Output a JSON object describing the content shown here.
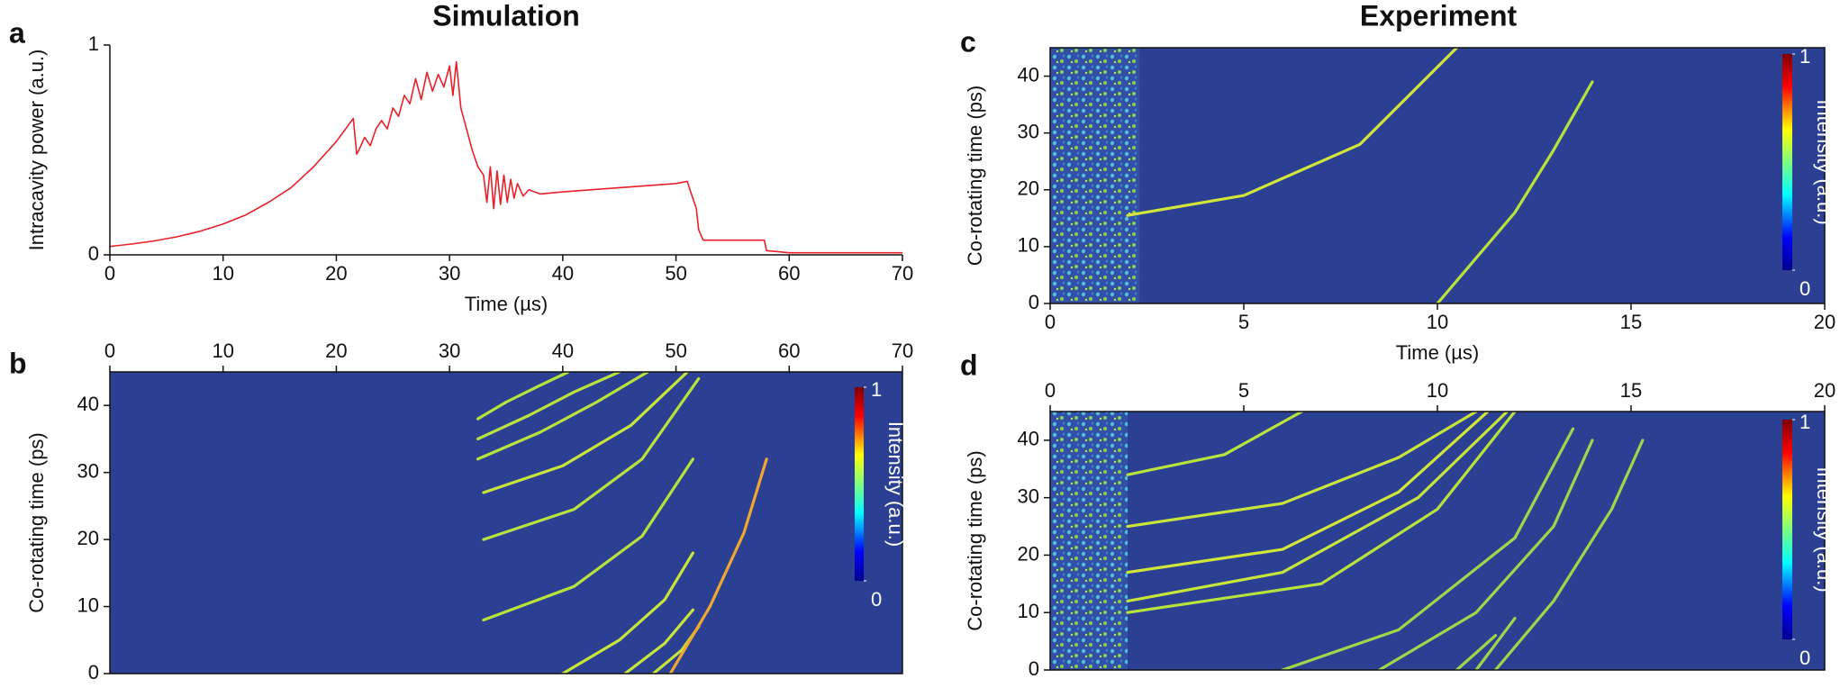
{
  "chart_data": [
    {
      "type": "line",
      "panel": "a",
      "title": "Simulation",
      "x_label": "Time (µs)",
      "y_label": "Intracavity power (a.u.)",
      "x": [
        0,
        2,
        4,
        6,
        8,
        10,
        12,
        14,
        16,
        18,
        20,
        21.5,
        21.8,
        22,
        22.5,
        23,
        23.5,
        24,
        24.5,
        25,
        25.5,
        26,
        26.5,
        27,
        27.5,
        28,
        28.5,
        29,
        29.5,
        30,
        30.3,
        30.6,
        31,
        31.5,
        32,
        32.5,
        33,
        33.3,
        33.6,
        33.9,
        34.2,
        34.5,
        34.8,
        35.1,
        35.4,
        35.7,
        36,
        36.5,
        37,
        38,
        40,
        45,
        50,
        51,
        51.3,
        51.8,
        52,
        52.4,
        57.8,
        58,
        60,
        70
      ],
      "series": [
        {
          "color": "#e8202a",
          "values": [
            0.04,
            0.052,
            0.067,
            0.087,
            0.113,
            0.147,
            0.19,
            0.25,
            0.32,
            0.42,
            0.54,
            0.65,
            0.48,
            0.5,
            0.56,
            0.52,
            0.6,
            0.64,
            0.6,
            0.7,
            0.66,
            0.76,
            0.72,
            0.84,
            0.74,
            0.87,
            0.78,
            0.86,
            0.8,
            0.9,
            0.76,
            0.92,
            0.7,
            0.6,
            0.5,
            0.42,
            0.38,
            0.25,
            0.42,
            0.22,
            0.4,
            0.24,
            0.38,
            0.25,
            0.36,
            0.27,
            0.34,
            0.28,
            0.31,
            0.29,
            0.3,
            0.32,
            0.34,
            0.35,
            0.3,
            0.22,
            0.12,
            0.07,
            0.07,
            0.02,
            0.01,
            0.01
          ]
        }
      ],
      "xlim": [
        0,
        70
      ],
      "ylim": [
        0,
        1
      ],
      "xticks": [
        0,
        10,
        20,
        30,
        40,
        50,
        60,
        70
      ],
      "yticks": [
        0,
        1
      ],
      "xaxis_position": "bottom",
      "frame": false
    },
    {
      "type": "heatmap",
      "panel": "b",
      "y_label": "Co-rotating time (ps)",
      "background": "#2b3f93",
      "xlim": [
        0,
        70
      ],
      "ylim": [
        0,
        45
      ],
      "xticks": [
        0,
        10,
        20,
        30,
        40,
        50,
        60,
        70
      ],
      "yticks": [
        0,
        10,
        20,
        30,
        40
      ],
      "xaxis_position": "top",
      "frame": true,
      "colorbar": {
        "label": "Intensity (a.u.)",
        "lim": [
          0,
          1
        ],
        "ticks": [
          0,
          1
        ]
      },
      "series": [
        {
          "color": "#b8e23c",
          "x": [
            32.5,
            35,
            38,
            40.5
          ],
          "values": [
            38,
            40.5,
            43,
            45
          ]
        },
        {
          "color": "#b8e23c",
          "x": [
            32.5,
            37,
            41,
            45
          ],
          "values": [
            35,
            38.5,
            42,
            45
          ]
        },
        {
          "color": "#b8e23c",
          "x": [
            32.5,
            38,
            43,
            47.5
          ],
          "values": [
            32,
            36,
            40.5,
            45
          ]
        },
        {
          "color": "#c9e43a",
          "x": [
            33,
            40,
            46,
            51
          ],
          "values": [
            27,
            31,
            37,
            45
          ]
        },
        {
          "color": "#b8e23c",
          "x": [
            33,
            41,
            47,
            52
          ],
          "values": [
            20,
            24.5,
            32,
            44
          ]
        },
        {
          "color": "#b8e23c",
          "x": [
            33,
            41,
            47,
            51.5
          ],
          "values": [
            8,
            13,
            20.5,
            32
          ]
        },
        {
          "color": "#c9e43a",
          "x": [
            40,
            45,
            49,
            51.5
          ],
          "values": [
            0,
            5,
            11,
            18
          ]
        },
        {
          "color": "#c9e43a",
          "x": [
            45.5,
            49,
            51.5
          ],
          "values": [
            0,
            4.5,
            9.5
          ]
        },
        {
          "color": "#c9e43a",
          "x": [
            48,
            50.5,
            52
          ],
          "values": [
            0,
            3.5,
            7
          ]
        },
        {
          "color": "#f0a830",
          "x": [
            49.5,
            53,
            56,
            58
          ],
          "values": [
            0,
            10,
            21,
            32
          ]
        }
      ]
    },
    {
      "type": "heatmap",
      "panel": "c",
      "title": "Experiment",
      "x_label": "Time (µs)",
      "y_label": "Co-rotating time (ps)",
      "background": "#2b3f93",
      "xlim": [
        0,
        20
      ],
      "ylim": [
        0,
        45
      ],
      "xticks": [
        0,
        5,
        10,
        15,
        20
      ],
      "yticks": [
        0,
        10,
        20,
        30,
        40
      ],
      "xaxis_position": "bottom",
      "frame": true,
      "colorbar": {
        "label": "Intensity (a.u.)",
        "lim": [
          0,
          1
        ],
        "ticks": [
          0,
          1
        ]
      },
      "series": [
        {
          "color": "#d2e63a",
          "x": [
            2,
            5,
            8,
            10.5
          ],
          "values": [
            15.5,
            19,
            28,
            45
          ]
        },
        {
          "color": "#b8e23c",
          "x": [
            10,
            12,
            13,
            14
          ],
          "values": [
            0,
            16,
            27,
            39
          ]
        }
      ]
    },
    {
      "type": "heatmap",
      "panel": "d",
      "y_label": "Co-rotating time (ps)",
      "background": "#2b3f93",
      "xlim": [
        0,
        20
      ],
      "ylim": [
        0,
        45
      ],
      "xticks": [
        0,
        5,
        10,
        15,
        20
      ],
      "yticks": [
        0,
        10,
        20,
        30,
        40
      ],
      "xaxis_position": "top",
      "frame": true,
      "colorbar": {
        "label": "Intensity (a.u.)",
        "lim": [
          0,
          1
        ],
        "ticks": [
          0,
          1
        ]
      },
      "series": [
        {
          "color": "#b8e23c",
          "x": [
            2,
            4.5,
            6.5
          ],
          "values": [
            34,
            37.5,
            45
          ]
        },
        {
          "color": "#c9e43a",
          "x": [
            2,
            6,
            9,
            11
          ],
          "values": [
            25,
            29,
            37,
            45
          ]
        },
        {
          "color": "#d2e63a",
          "x": [
            2,
            6,
            9,
            11.3
          ],
          "values": [
            17,
            21,
            31,
            45
          ]
        },
        {
          "color": "#c9e43a",
          "x": [
            2,
            6,
            9.5,
            11.8
          ],
          "values": [
            12,
            17,
            30,
            45
          ]
        },
        {
          "color": "#b8e23c",
          "x": [
            2,
            7,
            10,
            12
          ],
          "values": [
            10,
            15,
            28,
            45
          ]
        },
        {
          "color": "#9ed84a",
          "x": [
            6,
            9,
            12,
            13.5
          ],
          "values": [
            0,
            7,
            23,
            42
          ]
        },
        {
          "color": "#9ed84a",
          "x": [
            8.5,
            11,
            13,
            14
          ],
          "values": [
            0,
            10,
            25,
            40
          ]
        },
        {
          "color": "#9ed84a",
          "x": [
            11.5,
            13,
            14.5,
            15.3
          ],
          "values": [
            0,
            12,
            28,
            40
          ]
        },
        {
          "color": "#9ed84a",
          "x": [
            10.5,
            11.5
          ],
          "values": [
            0,
            6
          ]
        },
        {
          "color": "#9ed84a",
          "x": [
            11,
            12
          ],
          "values": [
            0,
            9
          ]
        }
      ]
    }
  ]
}
